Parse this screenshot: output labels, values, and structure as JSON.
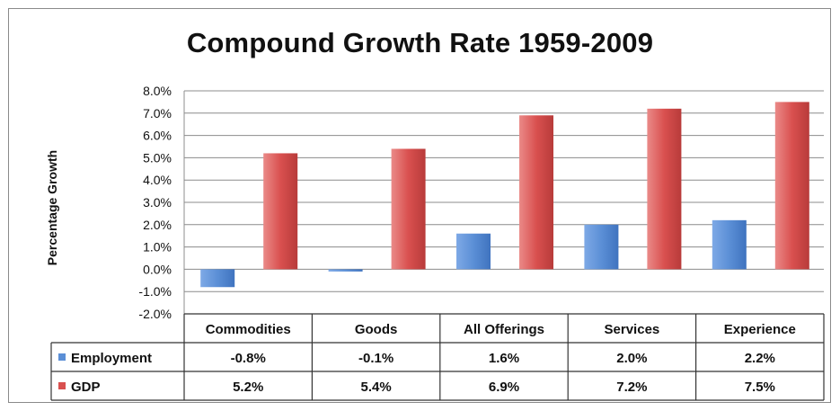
{
  "chart_data": {
    "type": "bar",
    "title": "Compound Growth Rate 1959-2009",
    "ylabel": "Percentage Growth",
    "xlabel": "",
    "ylim": [
      -2.0,
      8.0
    ],
    "y_ticks": [
      "8.0%",
      "7.0%",
      "6.0%",
      "5.0%",
      "4.0%",
      "3.0%",
      "2.0%",
      "1.0%",
      "0.0%",
      "-1.0%",
      "-2.0%"
    ],
    "y_tick_values": [
      8,
      7,
      6,
      5,
      4,
      3,
      2,
      1,
      0,
      -1,
      -2
    ],
    "grid": true,
    "legend_placement": "data-table",
    "categories": [
      "Commodities",
      "Goods",
      "All Offerings",
      "Services",
      "Experience"
    ],
    "series": [
      {
        "name": "Employment",
        "values": [
          -0.8,
          -0.1,
          1.6,
          2.0,
          2.2
        ],
        "labels": [
          "-0.8%",
          "-0.1%",
          "1.6%",
          "2.0%",
          "2.2%"
        ],
        "color": "#5b8fd6"
      },
      {
        "name": "GDP",
        "values": [
          5.2,
          5.4,
          6.9,
          7.2,
          7.5
        ],
        "labels": [
          "5.2%",
          "5.4%",
          "6.9%",
          "7.2%",
          "7.5%"
        ],
        "color": "#d9504f"
      }
    ]
  }
}
